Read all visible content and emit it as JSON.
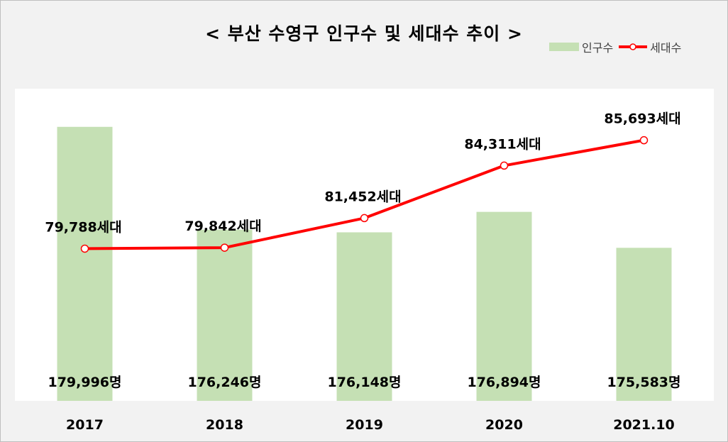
{
  "chart_data": {
    "type": "bar",
    "title": "< 부산 수영구 인구수 및 세대수 추이 >",
    "categories": [
      "2017",
      "2018",
      "2019",
      "2020",
      "2021.10"
    ],
    "series": [
      {
        "name": "인구수",
        "type": "bar",
        "values": [
          179996,
          176246,
          176148,
          176894,
          175583
        ],
        "labels": [
          "179,996명",
          "176,246명",
          "176,148명",
          "176,894명",
          "175,583명"
        ],
        "color": "#c5e0b4"
      },
      {
        "name": "세대수",
        "type": "line",
        "values": [
          79788,
          79842,
          81452,
          84311,
          85693
        ],
        "labels": [
          "79,788세대",
          "79,842세대",
          "81,452세대",
          "84,311세대",
          "85,693세대"
        ],
        "color": "#ff0000"
      }
    ],
    "legend_position": "top-right",
    "grid": false
  }
}
